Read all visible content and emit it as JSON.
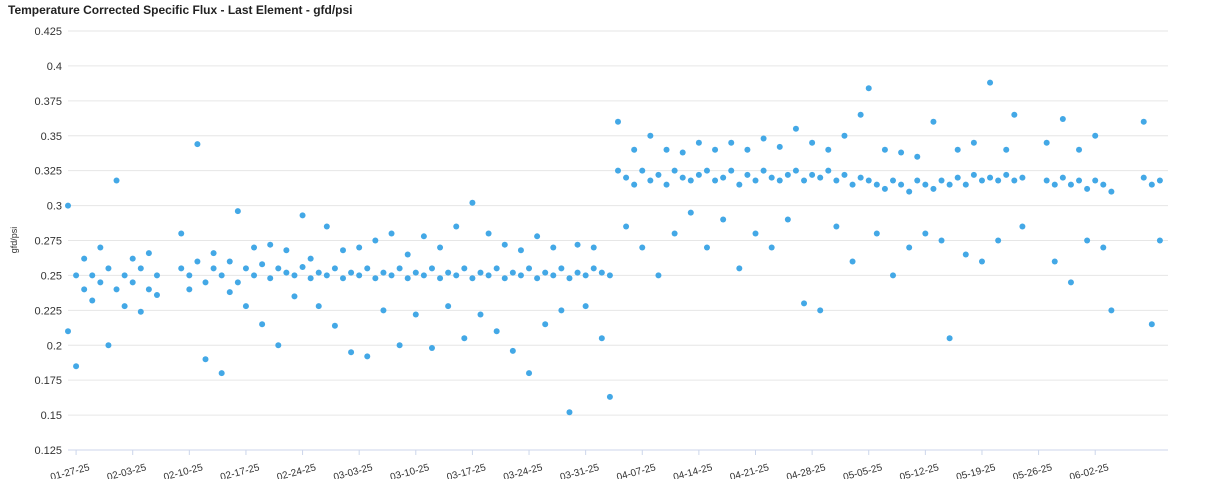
{
  "chart_data": {
    "type": "scatter",
    "title": "Temperature Corrected Specific Flux - Last Element - gfd/psi",
    "y_label": "gfd/psi",
    "x": [
      "01-26-25",
      "01-26-25",
      "01-27-25",
      "01-27-25",
      "01-28-25",
      "01-28-25",
      "01-29-25",
      "01-29-25",
      "01-30-25",
      "01-30-25",
      "01-31-25",
      "01-31-25",
      "02-01-25",
      "02-01-25",
      "02-02-25",
      "02-02-25",
      "02-03-25",
      "02-03-25",
      "02-04-25",
      "02-04-25",
      "02-05-25",
      "02-05-25",
      "02-06-25",
      "02-06-25",
      "02-09-25",
      "02-09-25",
      "02-10-25",
      "02-10-25",
      "02-11-25",
      "02-11-25",
      "02-12-25",
      "02-12-25",
      "02-13-25",
      "02-13-25",
      "02-14-25",
      "02-14-25",
      "02-15-25",
      "02-15-25",
      "02-16-25",
      "02-16-25",
      "02-17-25",
      "02-17-25",
      "02-18-25",
      "02-18-25",
      "02-19-25",
      "02-19-25",
      "02-20-25",
      "02-20-25",
      "02-21-25",
      "02-21-25",
      "02-22-25",
      "02-22-25",
      "02-23-25",
      "02-23-25",
      "02-24-25",
      "02-24-25",
      "02-25-25",
      "02-25-25",
      "02-26-25",
      "02-26-25",
      "02-27-25",
      "02-27-25",
      "02-28-25",
      "02-28-25",
      "03-01-25",
      "03-01-25",
      "03-02-25",
      "03-02-25",
      "03-03-25",
      "03-03-25",
      "03-04-25",
      "03-04-25",
      "03-05-25",
      "03-05-25",
      "03-06-25",
      "03-06-25",
      "03-07-25",
      "03-07-25",
      "03-08-25",
      "03-08-25",
      "03-09-25",
      "03-09-25",
      "03-10-25",
      "03-10-25",
      "03-11-25",
      "03-11-25",
      "03-12-25",
      "03-12-25",
      "03-13-25",
      "03-13-25",
      "03-14-25",
      "03-14-25",
      "03-15-25",
      "03-15-25",
      "03-16-25",
      "03-16-25",
      "03-17-25",
      "03-17-25",
      "03-18-25",
      "03-18-25",
      "03-19-25",
      "03-19-25",
      "03-20-25",
      "03-20-25",
      "03-21-25",
      "03-21-25",
      "03-22-25",
      "03-22-25",
      "03-23-25",
      "03-23-25",
      "03-24-25",
      "03-24-25",
      "03-25-25",
      "03-25-25",
      "03-26-25",
      "03-26-25",
      "03-27-25",
      "03-27-25",
      "03-28-25",
      "03-28-25",
      "03-29-25",
      "03-29-25",
      "03-30-25",
      "03-30-25",
      "03-31-25",
      "03-31-25",
      "04-01-25",
      "04-01-25",
      "04-02-25",
      "04-02-25",
      "04-03-25",
      "04-03-25",
      "04-04-25",
      "04-04-25",
      "04-05-25",
      "04-05-25",
      "04-06-25",
      "04-06-25",
      "04-07-25",
      "04-07-25",
      "04-08-25",
      "04-08-25",
      "04-09-25",
      "04-09-25",
      "04-10-25",
      "04-10-25",
      "04-11-25",
      "04-11-25",
      "04-12-25",
      "04-12-25",
      "04-13-25",
      "04-13-25",
      "04-14-25",
      "04-14-25",
      "04-15-25",
      "04-15-25",
      "04-16-25",
      "04-16-25",
      "04-17-25",
      "04-17-25",
      "04-18-25",
      "04-18-25",
      "04-19-25",
      "04-19-25",
      "04-20-25",
      "04-20-25",
      "04-21-25",
      "04-21-25",
      "04-22-25",
      "04-22-25",
      "04-23-25",
      "04-23-25",
      "04-24-25",
      "04-24-25",
      "04-25-25",
      "04-25-25",
      "04-26-25",
      "04-26-25",
      "04-27-25",
      "04-27-25",
      "04-28-25",
      "04-28-25",
      "04-29-25",
      "04-29-25",
      "04-30-25",
      "04-30-25",
      "05-01-25",
      "05-01-25",
      "05-02-25",
      "05-02-25",
      "05-03-25",
      "05-03-25",
      "05-04-25",
      "05-04-25",
      "05-05-25",
      "05-05-25",
      "05-06-25",
      "05-06-25",
      "05-07-25",
      "05-07-25",
      "05-08-25",
      "05-08-25",
      "05-09-25",
      "05-09-25",
      "05-10-25",
      "05-10-25",
      "05-11-25",
      "05-11-25",
      "05-12-25",
      "05-12-25",
      "05-13-25",
      "05-13-25",
      "05-14-25",
      "05-14-25",
      "05-15-25",
      "05-15-25",
      "05-16-25",
      "05-16-25",
      "05-17-25",
      "05-17-25",
      "05-18-25",
      "05-18-25",
      "05-19-25",
      "05-19-25",
      "05-20-25",
      "05-20-25",
      "05-21-25",
      "05-21-25",
      "05-22-25",
      "05-22-25",
      "05-23-25",
      "05-23-25",
      "05-24-25",
      "05-24-25",
      "05-27-25",
      "05-27-25",
      "05-28-25",
      "05-28-25",
      "05-29-25",
      "05-29-25",
      "05-30-25",
      "05-30-25",
      "05-31-25",
      "05-31-25",
      "06-01-25",
      "06-01-25",
      "06-02-25",
      "06-02-25",
      "06-03-25",
      "06-03-25",
      "06-04-25",
      "06-04-25",
      "06-08-25",
      "06-08-25",
      "06-09-25",
      "06-09-25",
      "06-10-25",
      "06-10-25"
    ],
    "series": [
      {
        "name": "gfd/psi",
        "color": "#43a8e6",
        "values": [
          0.3,
          0.21,
          0.25,
          0.185,
          0.24,
          0.262,
          0.25,
          0.232,
          0.245,
          0.27,
          0.255,
          0.2,
          0.24,
          0.318,
          0.25,
          0.228,
          0.245,
          0.262,
          0.255,
          0.224,
          0.24,
          0.266,
          0.25,
          0.236,
          0.255,
          0.28,
          0.25,
          0.24,
          0.26,
          0.344,
          0.245,
          0.19,
          0.255,
          0.266,
          0.25,
          0.18,
          0.26,
          0.238,
          0.245,
          0.296,
          0.255,
          0.228,
          0.25,
          0.27,
          0.258,
          0.215,
          0.248,
          0.272,
          0.255,
          0.2,
          0.252,
          0.268,
          0.25,
          0.235,
          0.256,
          0.293,
          0.248,
          0.262,
          0.252,
          0.228,
          0.25,
          0.285,
          0.255,
          0.214,
          0.248,
          0.268,
          0.252,
          0.195,
          0.25,
          0.27,
          0.255,
          0.192,
          0.248,
          0.275,
          0.252,
          0.225,
          0.25,
          0.28,
          0.255,
          0.2,
          0.248,
          0.265,
          0.252,
          0.222,
          0.25,
          0.278,
          0.255,
          0.198,
          0.248,
          0.27,
          0.252,
          0.228,
          0.25,
          0.285,
          0.255,
          0.205,
          0.248,
          0.302,
          0.252,
          0.222,
          0.25,
          0.28,
          0.255,
          0.21,
          0.248,
          0.272,
          0.252,
          0.196,
          0.25,
          0.268,
          0.255,
          0.18,
          0.248,
          0.278,
          0.252,
          0.215,
          0.25,
          0.27,
          0.255,
          0.225,
          0.248,
          0.152,
          0.252,
          0.272,
          0.25,
          0.228,
          0.255,
          0.27,
          0.252,
          0.205,
          0.25,
          0.163,
          0.325,
          0.36,
          0.32,
          0.285,
          0.315,
          0.34,
          0.325,
          0.27,
          0.318,
          0.35,
          0.322,
          0.25,
          0.315,
          0.34,
          0.325,
          0.28,
          0.32,
          0.338,
          0.318,
          0.295,
          0.322,
          0.345,
          0.325,
          0.27,
          0.318,
          0.34,
          0.32,
          0.29,
          0.325,
          0.345,
          0.315,
          0.255,
          0.322,
          0.34,
          0.318,
          0.28,
          0.325,
          0.348,
          0.32,
          0.27,
          0.318,
          0.342,
          0.322,
          0.29,
          0.325,
          0.355,
          0.318,
          0.23,
          0.322,
          0.345,
          0.32,
          0.225,
          0.325,
          0.34,
          0.318,
          0.285,
          0.322,
          0.35,
          0.315,
          0.26,
          0.32,
          0.365,
          0.318,
          0.384,
          0.315,
          0.28,
          0.312,
          0.34,
          0.318,
          0.25,
          0.315,
          0.338,
          0.31,
          0.27,
          0.318,
          0.335,
          0.315,
          0.28,
          0.312,
          0.36,
          0.318,
          0.275,
          0.315,
          0.205,
          0.32,
          0.34,
          0.315,
          0.265,
          0.322,
          0.345,
          0.318,
          0.26,
          0.32,
          0.388,
          0.318,
          0.275,
          0.322,
          0.34,
          0.318,
          0.365,
          0.32,
          0.285,
          0.318,
          0.345,
          0.315,
          0.26,
          0.32,
          0.362,
          0.315,
          0.245,
          0.318,
          0.34,
          0.312,
          0.275,
          0.318,
          0.35,
          0.315,
          0.27,
          0.31,
          0.225,
          0.32,
          0.36,
          0.315,
          0.215,
          0.318,
          0.275
        ]
      }
    ],
    "xlim": [
      "01-26-25",
      "06-11-25"
    ],
    "xticks": [
      "01-27-25",
      "02-03-25",
      "02-10-25",
      "02-17-25",
      "02-24-25",
      "03-03-25",
      "03-10-25",
      "03-17-25",
      "03-24-25",
      "03-31-25",
      "04-07-25",
      "04-14-25",
      "04-21-25",
      "04-28-25",
      "05-05-25",
      "05-12-25",
      "05-19-25",
      "05-26-25",
      "06-02-25"
    ],
    "ylim": [
      0.125,
      0.425
    ],
    "yticks": [
      0.125,
      0.15,
      0.175,
      0.2,
      0.225,
      0.25,
      0.275,
      0.3,
      0.325,
      0.35,
      0.375,
      0.4,
      0.425
    ],
    "grid": true
  }
}
